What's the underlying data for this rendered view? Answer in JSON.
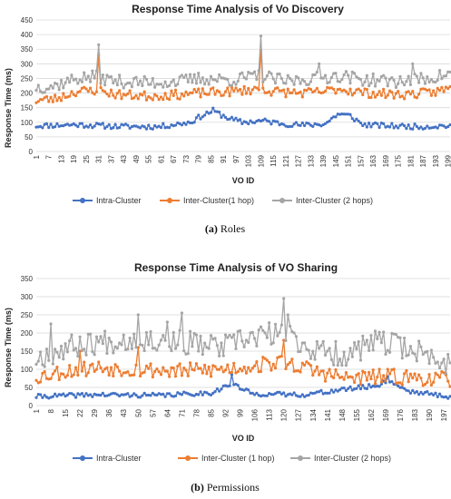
{
  "colors": {
    "intra": "#4472C4",
    "inter1": "#ED7D31",
    "inter2": "#A5A5A5"
  },
  "chart_data": [
    {
      "type": "line",
      "title": "Response Time Analysis of Vo Discovery",
      "xlabel": "VO ID",
      "ylabel": "Response Time (ms)",
      "ylim": [
        0,
        450
      ],
      "yticks": [
        0,
        50,
        100,
        150,
        200,
        250,
        300,
        350,
        400,
        450
      ],
      "xlim": [
        1,
        200
      ],
      "xticks": [
        1,
        7,
        13,
        19,
        25,
        31,
        37,
        43,
        49,
        55,
        61,
        67,
        73,
        79,
        85,
        91,
        97,
        103,
        109,
        115,
        121,
        127,
        133,
        139,
        145,
        151,
        157,
        163,
        169,
        175,
        181,
        187,
        193,
        199
      ],
      "grid": true,
      "legend": "bottom",
      "caption_letter": "(a)",
      "caption_text": "Roles",
      "series": [
        {
          "name": "Intra-Cluster",
          "color_key": "intra",
          "anchors": [
            [
              1,
              88
            ],
            [
              20,
              92
            ],
            [
              40,
              86
            ],
            [
              60,
              85
            ],
            [
              75,
              100
            ],
            [
              80,
              120
            ],
            [
              86,
              140
            ],
            [
              90,
              125
            ],
            [
              95,
              110
            ],
            [
              100,
              100
            ],
            [
              110,
              105
            ],
            [
              120,
              95
            ],
            [
              130,
              90
            ],
            [
              140,
              95
            ],
            [
              146,
              128
            ],
            [
              152,
              122
            ],
            [
              158,
              92
            ],
            [
              170,
              88
            ],
            [
              185,
              85
            ],
            [
              199,
              88
            ]
          ]
        },
        {
          "name": "Inter-Cluster(1 hop)",
          "color_key": "inter1",
          "anchors": [
            [
              1,
              175
            ],
            [
              10,
              180
            ],
            [
              20,
              205
            ],
            [
              30,
              210
            ],
            [
              40,
              195
            ],
            [
              55,
              190
            ],
            [
              70,
              195
            ],
            [
              80,
              200
            ],
            [
              95,
              205
            ],
            [
              109,
              215
            ],
            [
              115,
              205
            ],
            [
              130,
              200
            ],
            [
              140,
              205
            ],
            [
              146,
              215
            ],
            [
              160,
              200
            ],
            [
              175,
              195
            ],
            [
              190,
              200
            ],
            [
              199,
              215
            ]
          ],
          "spikes": [
            [
              31,
              330
            ],
            [
              109,
              345
            ]
          ]
        },
        {
          "name": "Inter-Cluster (2 hops)",
          "color_key": "inter2",
          "anchors": [
            [
              1,
              220
            ],
            [
              10,
              225
            ],
            [
              20,
              250
            ],
            [
              30,
              255
            ],
            [
              40,
              240
            ],
            [
              55,
              235
            ],
            [
              70,
              240
            ],
            [
              80,
              250
            ],
            [
              95,
              245
            ],
            [
              109,
              260
            ],
            [
              120,
              240
            ],
            [
              135,
              250
            ],
            [
              146,
              260
            ],
            [
              160,
              245
            ],
            [
              175,
              240
            ],
            [
              190,
              250
            ],
            [
              199,
              265
            ]
          ],
          "spikes": [
            [
              31,
              365
            ],
            [
              109,
              395
            ],
            [
              137,
              300
            ],
            [
              182,
              300
            ]
          ]
        }
      ]
    },
    {
      "type": "line",
      "title": "Response Time Analysis of VO Sharing",
      "xlabel": "VO ID",
      "ylabel": "Response Time (ms)",
      "ylim": [
        0,
        350
      ],
      "yticks": [
        0,
        50,
        100,
        150,
        200,
        250,
        300,
        350
      ],
      "xlim": [
        1,
        200
      ],
      "xticks": [
        1,
        8,
        15,
        22,
        29,
        36,
        43,
        50,
        57,
        64,
        71,
        78,
        85,
        92,
        99,
        106,
        113,
        120,
        127,
        134,
        141,
        148,
        155,
        162,
        169,
        176,
        183,
        190,
        197
      ],
      "grid": true,
      "legend": "bottom",
      "caption_letter": "(b)",
      "caption_text": "Permissions",
      "series": [
        {
          "name": "Intra-Cluster",
          "color_key": "intra",
          "anchors": [
            [
              1,
              25
            ],
            [
              30,
              30
            ],
            [
              60,
              28
            ],
            [
              85,
              35
            ],
            [
              95,
              60
            ],
            [
              105,
              32
            ],
            [
              130,
              30
            ],
            [
              150,
              45
            ],
            [
              165,
              55
            ],
            [
              170,
              70
            ],
            [
              180,
              40
            ],
            [
              199,
              25
            ]
          ],
          "spikes": [
            [
              95,
              85
            ],
            [
              170,
              80
            ]
          ]
        },
        {
          "name": "Inter-Cluster (1 hop)",
          "color_key": "inter1",
          "anchors": [
            [
              1,
              80
            ],
            [
              15,
              95
            ],
            [
              30,
              105
            ],
            [
              50,
              100
            ],
            [
              70,
              95
            ],
            [
              90,
              100
            ],
            [
              106,
              110
            ],
            [
              120,
              120
            ],
            [
              135,
              95
            ],
            [
              150,
              75
            ],
            [
              170,
              80
            ],
            [
              190,
              75
            ],
            [
              199,
              70
            ]
          ],
          "spikes": [
            [
              22,
              150
            ],
            [
              50,
              160
            ],
            [
              120,
              180
            ]
          ]
        },
        {
          "name": "Inter-Cluster (2 hops)",
          "color_key": "inter2",
          "anchors": [
            [
              1,
              130
            ],
            [
              15,
              160
            ],
            [
              30,
              175
            ],
            [
              50,
              185
            ],
            [
              70,
              175
            ],
            [
              90,
              160
            ],
            [
              106,
              190
            ],
            [
              120,
              200
            ],
            [
              135,
              150
            ],
            [
              150,
              140
            ],
            [
              165,
              175
            ],
            [
              180,
              160
            ],
            [
              199,
              115
            ]
          ],
          "spikes": [
            [
              8,
              225
            ],
            [
              50,
              250
            ],
            [
              64,
              230
            ],
            [
              71,
              255
            ],
            [
              120,
              295
            ],
            [
              122,
              250
            ]
          ]
        }
      ]
    }
  ]
}
